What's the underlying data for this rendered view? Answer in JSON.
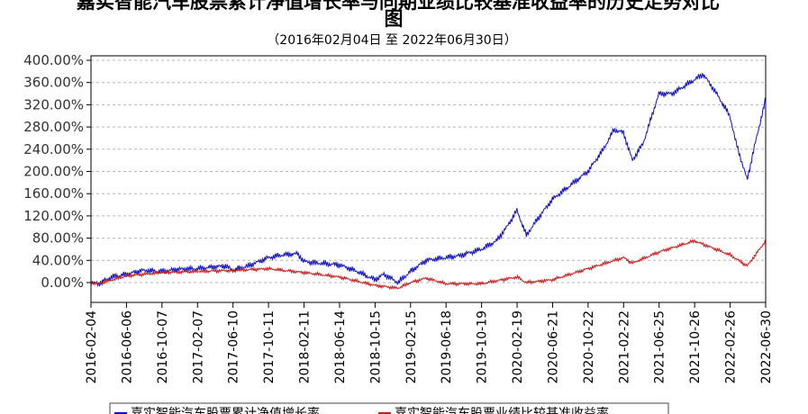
{
  "chart_data": {
    "type": "line",
    "title_line1": "嘉实智能汽车股票累计净值增长率与同期业绩比较基准收益率的历史走势对比",
    "title_line2": "图",
    "subtitle": "（2016年02月04日 至 2022年06月30日）",
    "xlabel": "",
    "ylabel": "",
    "ylim": [
      -20,
      400
    ],
    "yticks": [
      "400.00%",
      "360.00%",
      "320.00%",
      "280.00%",
      "240.00%",
      "200.00%",
      "160.00%",
      "120.00%",
      "80.00%",
      "40.00%",
      "0.00%"
    ],
    "xticks": [
      "2016-02-04",
      "2016-06-06",
      "2016-10-07",
      "2017-02-07",
      "2017-06-10",
      "2017-10-11",
      "2018-02-11",
      "2018-06-14",
      "2018-10-15",
      "2019-02-15",
      "2019-06-18",
      "2019-10-19",
      "2020-02-19",
      "2020-06-21",
      "2020-10-22",
      "2021-02-22",
      "2021-06-25",
      "2021-10-26",
      "2022-02-26",
      "2022-06-30"
    ],
    "grid": true,
    "legend_position": "bottom",
    "series": [
      {
        "name": "嘉实智能汽车股票累计净值增长率",
        "color": "#1010c0",
        "x": [
          "2016-02-04",
          "2016-03-01",
          "2016-04-15",
          "2016-06-06",
          "2016-08-01",
          "2016-10-07",
          "2016-12-01",
          "2017-02-07",
          "2017-04-01",
          "2017-05-15",
          "2017-06-10",
          "2017-08-01",
          "2017-10-11",
          "2017-12-01",
          "2018-01-20",
          "2018-02-11",
          "2018-04-01",
          "2018-06-14",
          "2018-08-15",
          "2018-10-15",
          "2018-11-15",
          "2019-01-03",
          "2019-02-15",
          "2019-04-10",
          "2019-06-18",
          "2019-08-01",
          "2019-10-19",
          "2019-12-10",
          "2020-01-15",
          "2020-02-19",
          "2020-03-23",
          "2020-05-01",
          "2020-06-21",
          "2020-08-10",
          "2020-10-22",
          "2020-12-15",
          "2021-01-20",
          "2021-02-22",
          "2021-03-25",
          "2021-05-01",
          "2021-06-25",
          "2021-08-10",
          "2021-10-26",
          "2021-11-25",
          "2022-01-05",
          "2022-02-26",
          "2022-03-20",
          "2022-04-27",
          "2022-05-20",
          "2022-06-30"
        ],
        "values": [
          0,
          -2,
          10,
          15,
          22,
          20,
          24,
          25,
          28,
          30,
          22,
          30,
          45,
          50,
          52,
          38,
          35,
          32,
          20,
          5,
          15,
          0,
          20,
          40,
          45,
          48,
          60,
          75,
          100,
          130,
          85,
          115,
          150,
          170,
          200,
          240,
          275,
          270,
          220,
          250,
          340,
          340,
          365,
          375,
          345,
          300,
          250,
          185,
          240,
          330
        ]
      },
      {
        "name": "嘉实智能汽车股票业绩比较基准收益率",
        "color": "#c81e1e",
        "x": [
          "2016-02-04",
          "2016-03-01",
          "2016-06-06",
          "2016-10-07",
          "2017-02-07",
          "2017-06-10",
          "2017-10-11",
          "2018-02-11",
          "2018-06-14",
          "2018-10-15",
          "2019-01-03",
          "2019-02-15",
          "2019-04-10",
          "2019-06-18",
          "2019-10-19",
          "2020-02-19",
          "2020-03-23",
          "2020-06-21",
          "2020-10-22",
          "2021-02-22",
          "2021-03-25",
          "2021-06-25",
          "2021-10-26",
          "2022-02-26",
          "2022-04-27",
          "2022-06-30"
        ],
        "values": [
          0,
          -2,
          12,
          18,
          20,
          22,
          25,
          18,
          10,
          -5,
          -10,
          0,
          8,
          -2,
          -2,
          10,
          0,
          5,
          25,
          45,
          35,
          55,
          75,
          50,
          30,
          75
        ]
      }
    ]
  }
}
